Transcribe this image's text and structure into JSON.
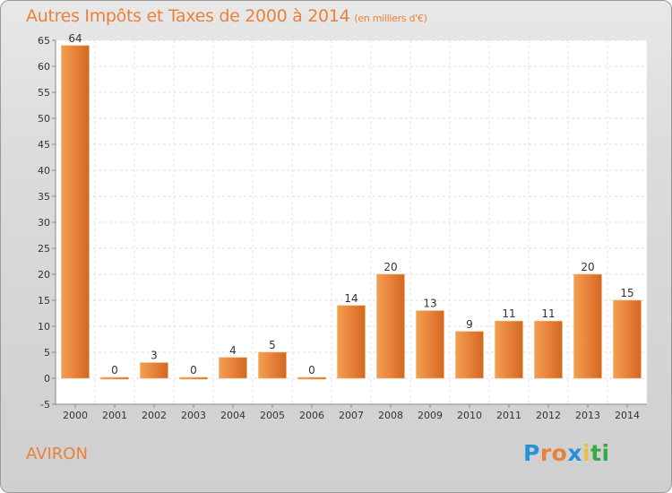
{
  "chart_data": {
    "type": "bar",
    "title": "Autres Impôts et Taxes de 2000 à 2014",
    "subtitle": "(en milliers d'€)",
    "categories": [
      "2000",
      "2001",
      "2002",
      "2003",
      "2004",
      "2005",
      "2006",
      "2007",
      "2008",
      "2009",
      "2010",
      "2011",
      "2012",
      "2013",
      "2014"
    ],
    "values": [
      64,
      0,
      3,
      0,
      4,
      5,
      0,
      14,
      20,
      13,
      9,
      11,
      11,
      20,
      15
    ],
    "ylim": [
      -5,
      65
    ],
    "yticks": [
      -5,
      0,
      5,
      10,
      15,
      20,
      25,
      30,
      35,
      40,
      45,
      50,
      55,
      60,
      65
    ],
    "grid": true,
    "bar_color": "#e8823a"
  },
  "commune": "AVIRON",
  "logo": {
    "letters": [
      "P",
      "r",
      "o",
      "x",
      "i",
      "t",
      "i"
    ],
    "colors": [
      "#2a8fd6",
      "#e8823a",
      "#e8823a",
      "#2a8fd6",
      "#e8c23a",
      "#3aa84a",
      "#3aa84a"
    ]
  }
}
